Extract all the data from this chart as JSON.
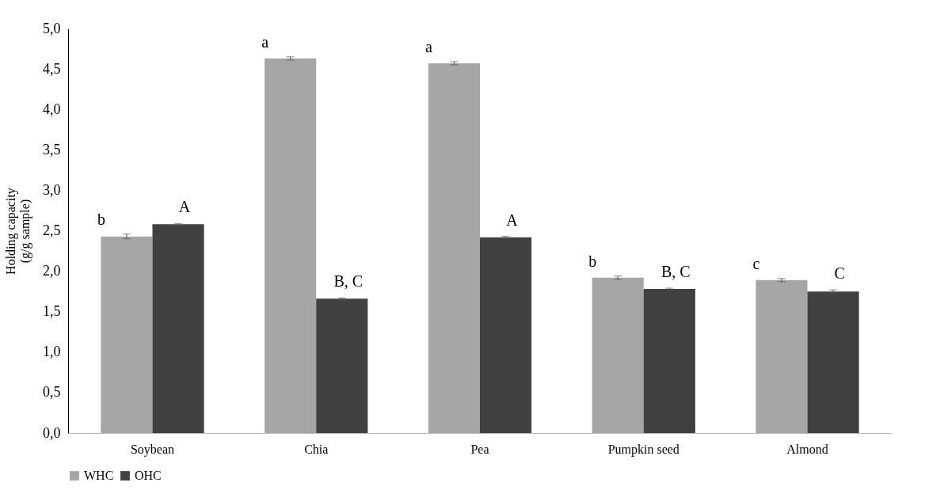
{
  "chart_data": {
    "type": "bar",
    "ylabel": "Holding capacity\n(g/g sample)",
    "categories": [
      "Soybean",
      "Chia",
      "Pea",
      "Pumpkin seed",
      "Almond"
    ],
    "series": [
      {
        "name": "WHC",
        "color": "#a6a6a6",
        "values": [
          2.43,
          4.63,
          4.57,
          1.92,
          1.89
        ],
        "errors": [
          0.03,
          0.02,
          0.02,
          0.02,
          0.02
        ],
        "value_labels": [
          "b",
          "a",
          "a",
          "b",
          "c"
        ]
      },
      {
        "name": "OHC",
        "color": "#404040",
        "values": [
          2.58,
          1.66,
          2.42,
          1.78,
          1.75
        ],
        "errors": [
          0.01,
          0.01,
          0.01,
          0.01,
          0.02
        ],
        "value_labels": [
          "A",
          "B, C",
          "A",
          "B, C",
          "C"
        ]
      }
    ],
    "ylim": [
      0,
      5
    ],
    "yticks": [
      {
        "value": 0,
        "label": "0,0"
      },
      {
        "value": 0.5,
        "label": "0,5"
      },
      {
        "value": 1,
        "label": "1,0"
      },
      {
        "value": 1.5,
        "label": "1,5"
      },
      {
        "value": 2,
        "label": "2,0"
      },
      {
        "value": 2.5,
        "label": "2,5"
      },
      {
        "value": 3,
        "label": "3,0"
      },
      {
        "value": 3.5,
        "label": "3,5"
      },
      {
        "value": 4,
        "label": "4,0"
      },
      {
        "value": 4.5,
        "label": "4,5"
      },
      {
        "value": 5,
        "label": "5,0"
      }
    ],
    "legend": "bottom",
    "grid": false
  }
}
